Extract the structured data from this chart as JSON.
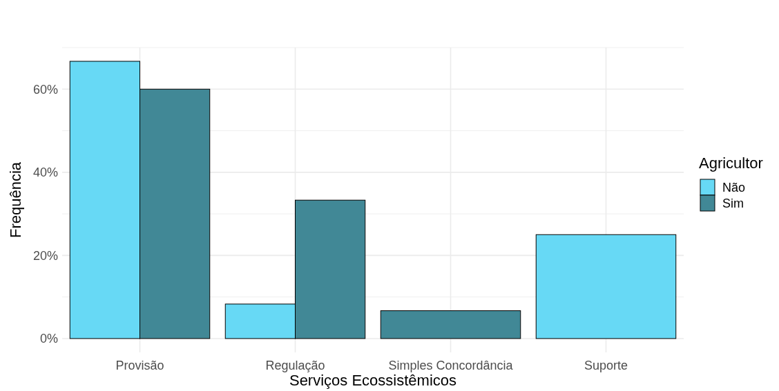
{
  "chart_data": {
    "type": "bar",
    "xlabel": "Serviços Ecossistêmicos",
    "ylabel": "Frequência",
    "legend_title": "Agricultor",
    "categories": [
      "Provisão",
      "Regulação",
      "Simples Concordância",
      "Suporte"
    ],
    "series": [
      {
        "name": "Não",
        "color": "#67d9f5",
        "values": [
          66.7,
          8.3,
          null,
          25
        ]
      },
      {
        "name": "Sim",
        "color": "#418896",
        "values": [
          60,
          33.3,
          6.7,
          null
        ]
      }
    ],
    "ylim": [
      -3.33,
      70
    ],
    "yticks": [
      {
        "value": 0,
        "label": "0%"
      },
      {
        "value": 20,
        "label": "20%"
      },
      {
        "value": 40,
        "label": "40%"
      },
      {
        "value": 60,
        "label": "60%"
      }
    ],
    "grid": true,
    "legend": "right"
  }
}
